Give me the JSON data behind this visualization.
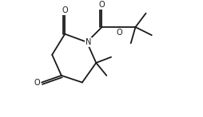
{
  "bg_color": "#ffffff",
  "line_color": "#1a1a1a",
  "lw": 1.3,
  "fs": 7.0,
  "xlim": [
    0,
    11.0
  ],
  "ylim": [
    0,
    10.0
  ],
  "figsize": [
    2.55,
    1.47
  ],
  "dpi": 100
}
